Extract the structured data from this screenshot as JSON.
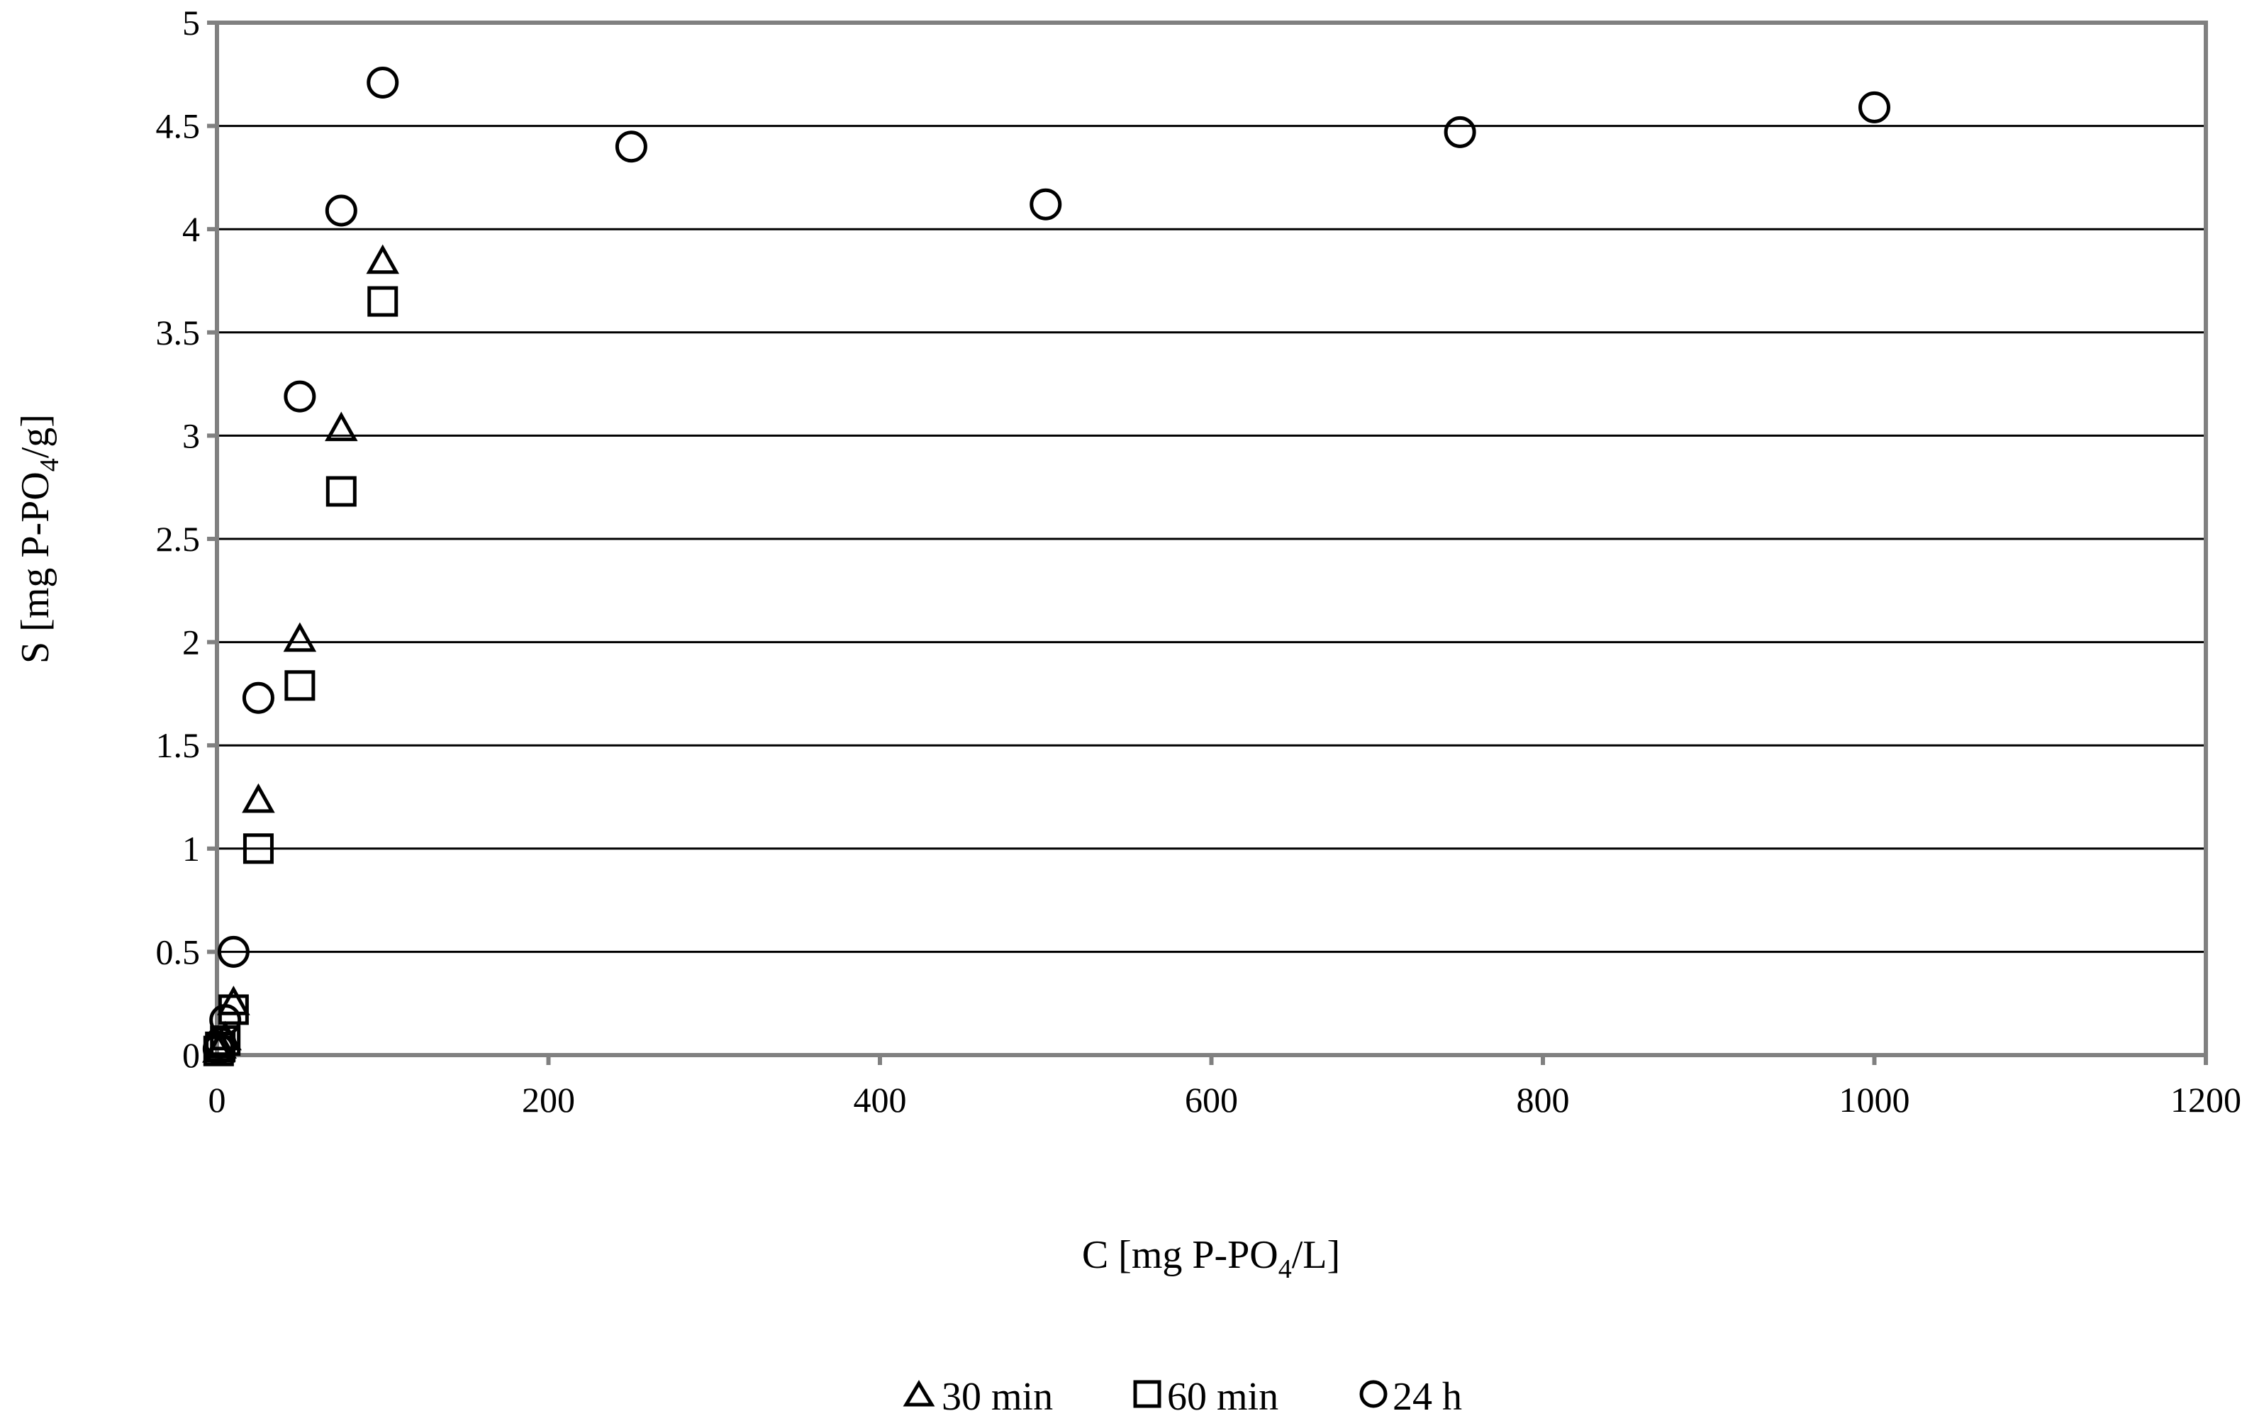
{
  "chart_data": {
    "type": "scatter",
    "title": "",
    "xlabel": "C [mg P-PO4/L]",
    "xlabel_parts": {
      "before": "C [mg P-PO",
      "sub": "4",
      "after": "/L]"
    },
    "ylabel": "S [mg P-PO4/g]",
    "ylabel_parts": {
      "before": "S [mg P-PO",
      "sub": "4",
      "after": "/g]"
    },
    "xlim": [
      0,
      1200
    ],
    "ylim": [
      0,
      5
    ],
    "x_ticks": [
      "0",
      "200",
      "400",
      "600",
      "800",
      "1000",
      "1200"
    ],
    "y_ticks": [
      "0",
      "0.5",
      "1",
      "1.5",
      "2",
      "2.5",
      "3",
      "3.5",
      "4",
      "4.5",
      "5"
    ],
    "grid": "horizontal",
    "legend_position": "bottom-center",
    "series": [
      {
        "name": "30 min",
        "marker": "triangle",
        "points": [
          [
            1,
            0.02
          ],
          [
            2,
            0.04
          ],
          [
            5,
            0.08
          ],
          [
            10,
            0.25
          ],
          [
            25,
            1.23
          ],
          [
            50,
            2.01
          ],
          [
            75,
            3.03
          ],
          [
            100,
            3.84
          ]
        ]
      },
      {
        "name": "60 min",
        "marker": "square",
        "points": [
          [
            1,
            0.02
          ],
          [
            2,
            0.04
          ],
          [
            5,
            0.07
          ],
          [
            10,
            0.22
          ],
          [
            25,
            1.0
          ],
          [
            50,
            1.79
          ],
          [
            75,
            2.73
          ],
          [
            100,
            3.65
          ]
        ]
      },
      {
        "name": "24 h",
        "marker": "circle",
        "points": [
          [
            1,
            0.03
          ],
          [
            2,
            0.06
          ],
          [
            5,
            0.17
          ],
          [
            10,
            0.5
          ],
          [
            25,
            1.73
          ],
          [
            50,
            3.19
          ],
          [
            75,
            4.09
          ],
          [
            100,
            4.71
          ],
          [
            250,
            4.4
          ],
          [
            500,
            4.12
          ],
          [
            750,
            4.47
          ],
          [
            1000,
            4.59
          ]
        ]
      }
    ]
  }
}
